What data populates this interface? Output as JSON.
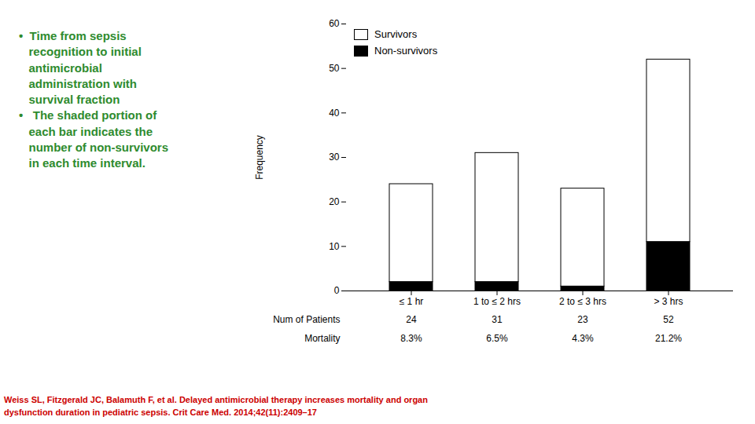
{
  "chart_data": {
    "type": "bar",
    "stacked": true,
    "categories": [
      "≤ 1 hr",
      "1 to ≤ 2 hrs",
      "2 to ≤ 3 hrs",
      "> 3 hrs"
    ],
    "series": [
      {
        "name": "Non-survivors",
        "color": "#000000",
        "values": [
          2,
          2,
          1,
          11
        ]
      },
      {
        "name": "Survivors",
        "color": "#ffffff",
        "values": [
          22,
          29,
          22,
          41
        ]
      }
    ],
    "ylabel": "Frequency",
    "ylim": [
      0,
      60
    ],
    "yticks": [
      0,
      10,
      20,
      30,
      40,
      50,
      60
    ],
    "grid": false,
    "legend": "upper left",
    "table": [
      {
        "label": "Num of Patients",
        "values": [
          24,
          31,
          23,
          52
        ]
      },
      {
        "label": "Mortality",
        "values": [
          8.3,
          6.5,
          4.3,
          21.2
        ],
        "value_labels": [
          "8.3%",
          "6.5%",
          "4.3%",
          "21.2%"
        ]
      }
    ],
    "annotations": [
      {
        "text": [
          "•  Time from sepsis",
          "   recognition to initial",
          "   antimicrobial",
          "   administration with",
          "   survival fraction",
          "•   The shaded portion of",
          "   each bar indicates the",
          "   number of non-survivors",
          "   in each time interval."
        ],
        "color": "#2e8b2e"
      }
    ],
    "citation": {
      "text": [
        "Weiss SL, Fitzgerald JC, Balamuth F, et al. Delayed antimicrobial therapy increases mortality and organ",
        "dysfunction duration in pediatric sepsis. Crit Care Med. 2014;42(11):2409–17"
      ],
      "color": "#cc0000"
    }
  }
}
